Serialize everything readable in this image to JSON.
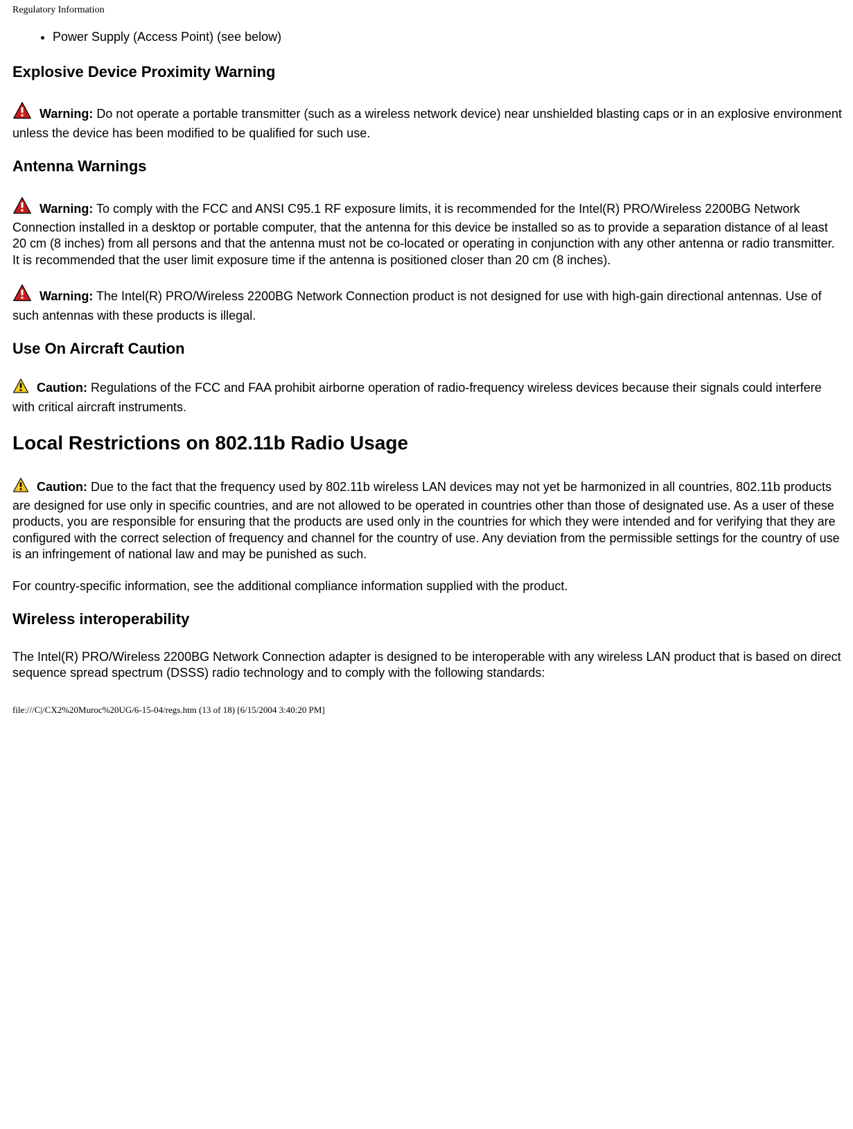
{
  "header": {
    "title": "Regulatory Information"
  },
  "bullet": {
    "item1": "Power Supply (Access Point) (see below)"
  },
  "sections": {
    "explosive": {
      "heading": "Explosive Device Proximity Warning",
      "warn1_label": "Warning:",
      "warn1_text": " Do not operate a portable transmitter (such as a wireless network device) near unshielded blasting caps or in an explosive environment unless the device has been modified to be qualified for such use."
    },
    "antenna": {
      "heading": "Antenna Warnings",
      "warn1_label": "Warning:",
      "warn1_text": " To comply with the FCC and ANSI C95.1 RF exposure limits, it is recommended for the Intel(R) PRO/Wireless 2200BG Network Connection installed in a desktop or portable computer, that the antenna for this device be installed so as to provide a separation distance of al least 20 cm (8 inches) from all persons and that the antenna must not be co-located or operating in conjunction with any other antenna or radio transmitter. It is recommended that the user limit exposure time if the antenna is positioned closer than 20 cm (8 inches).",
      "warn2_label": "Warning:",
      "warn2_text": " The Intel(R) PRO/Wireless 2200BG Network Connection product is not designed for use with high-gain directional antennas. Use of such antennas with these products is illegal."
    },
    "aircraft": {
      "heading": "Use On Aircraft Caution",
      "caut1_label": "Caution:",
      "caut1_text": " Regulations of the FCC and FAA prohibit airborne operation of radio-frequency wireless devices because their signals could interfere with critical aircraft instruments."
    },
    "local": {
      "heading": "Local Restrictions on 802.11b Radio Usage",
      "caut1_label": "Caution:",
      "caut1_text": " Due to the fact that the frequency used by 802.11b wireless LAN devices may not yet be harmonized in all countries, 802.11b products are designed for use only in specific countries, and are not allowed to be operated in countries other than those of designated use. As a user of these products, you are responsible for ensuring that the products are used only in the countries for which they were intended and for verifying that they are configured with the correct selection of frequency and channel for the country of use. Any deviation from the permissible settings for the country of use is an infringement of national law and may be punished as such.",
      "para2": "For country-specific information, see the additional compliance information supplied with the product."
    },
    "interop": {
      "heading": "Wireless interoperability",
      "para1": "The Intel(R) PRO/Wireless 2200BG Network Connection adapter is designed to be interoperable with any wireless LAN product that is based on direct sequence spread spectrum (DSSS) radio technology and to comply with the following standards:"
    }
  },
  "footer": {
    "text": "file:///C|/CX2%20Muroc%20UG/6-15-04/regs.htm (13 of 18) [6/15/2004 3:40:20 PM]"
  },
  "icons": {
    "warning": {
      "fill": "#c81e1e",
      "stroke": "#000000",
      "mark": "#ffffff",
      "size": 28
    },
    "caution": {
      "fill": "#f4c820",
      "stroke": "#000000",
      "mark": "#000000",
      "size": 24
    }
  }
}
